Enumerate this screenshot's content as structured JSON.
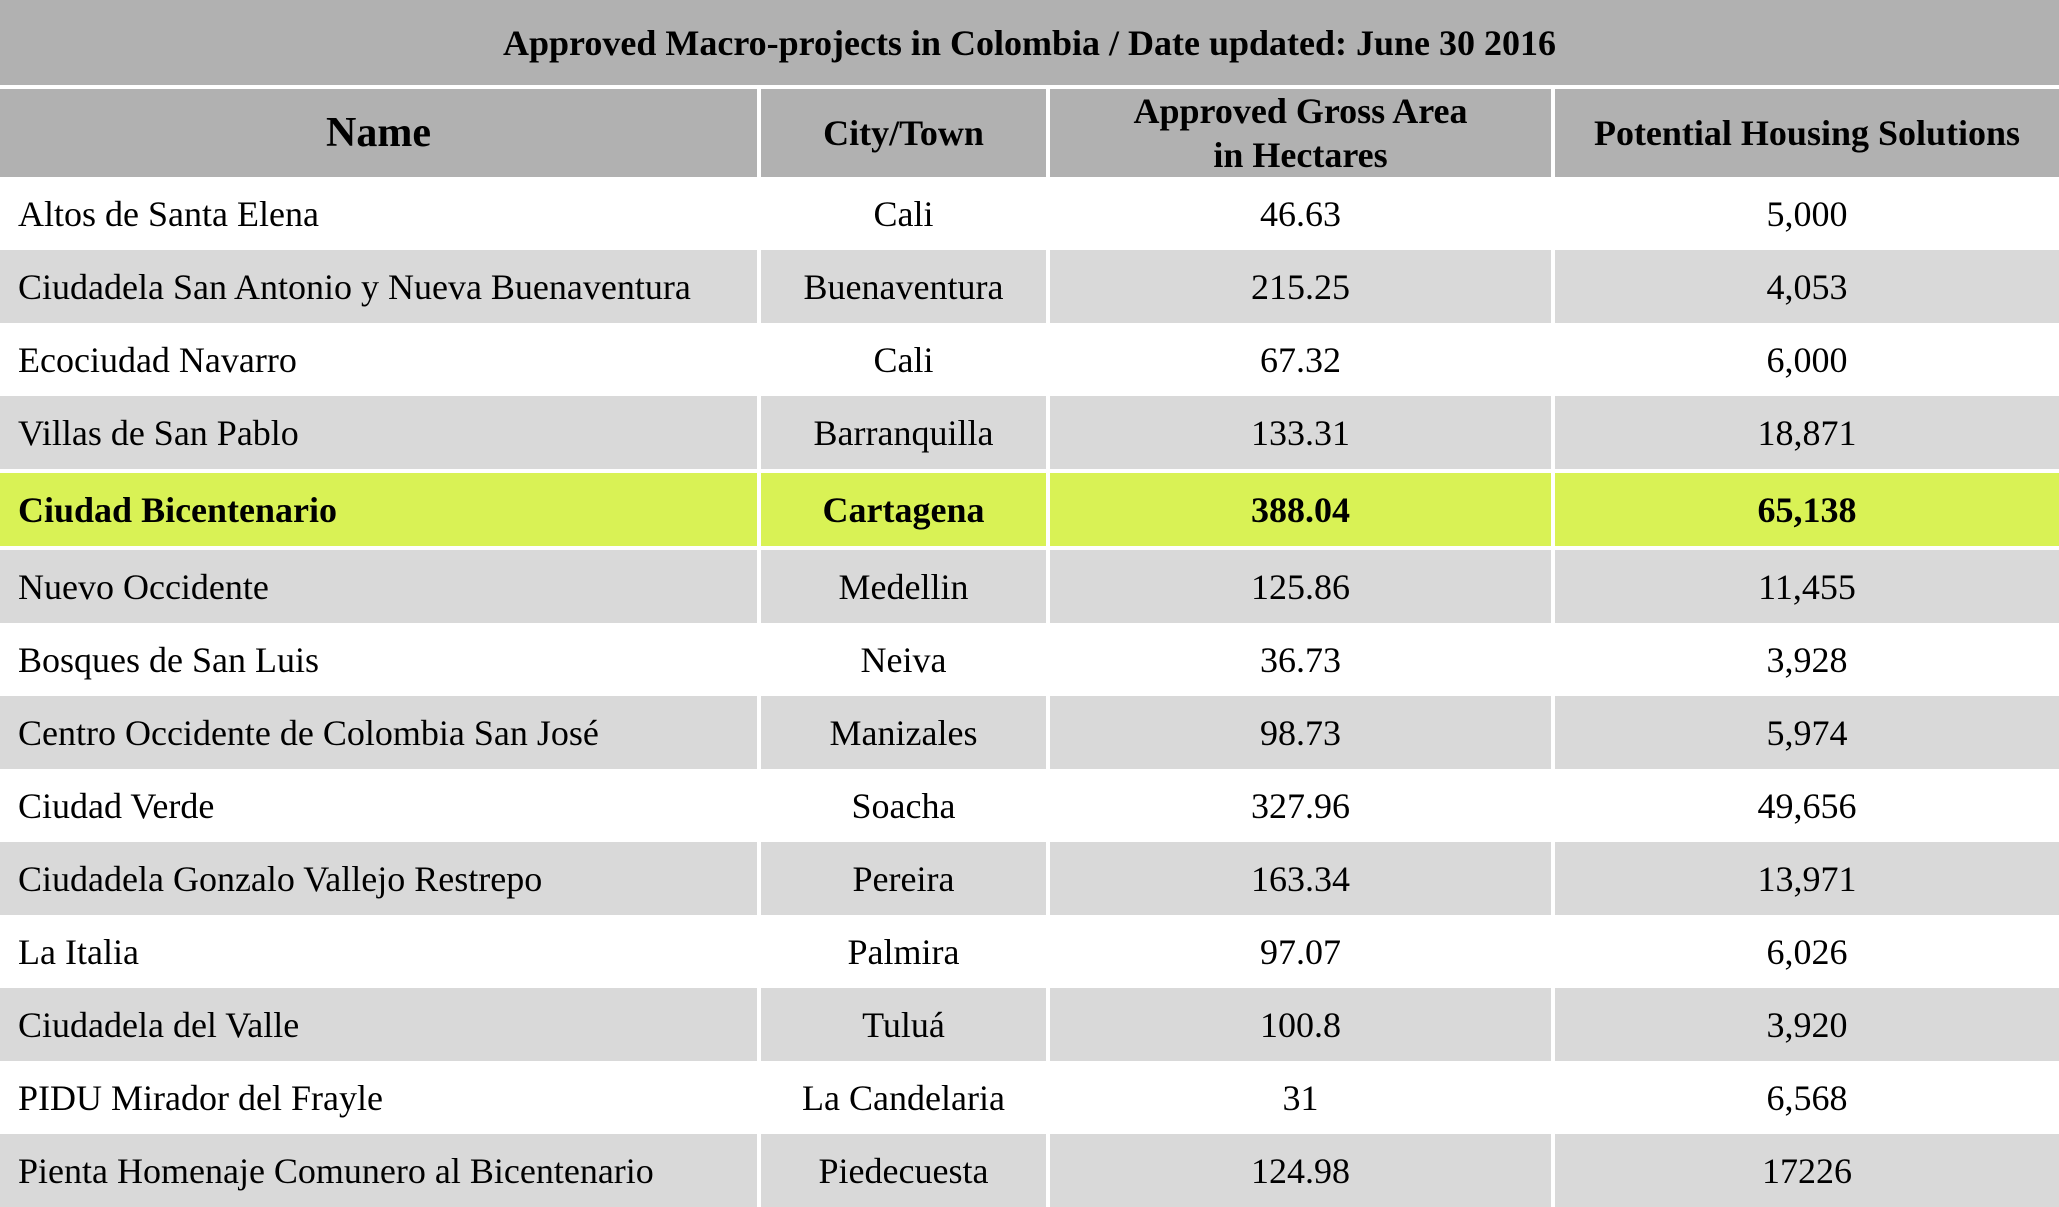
{
  "title": "Approved Macro-projects in Colombia / Date updated: June 30 2016",
  "headers": {
    "name": "Name",
    "city": "City/Town",
    "area_line1": "Approved Gross Area",
    "area_line2": "in Hectares",
    "housing": "Potential Housing Solutions"
  },
  "rows": [
    {
      "name": "Altos de Santa Elena",
      "city": "Cali",
      "area": "46.63",
      "housing": "5,000"
    },
    {
      "name": "Ciudadela San Antonio y Nueva Buenaventura",
      "city": "Buenaventura",
      "area": "215.25",
      "housing": "4,053"
    },
    {
      "name": "Ecociudad Navarro",
      "city": "Cali",
      "area": "67.32",
      "housing": "6,000"
    },
    {
      "name": "Villas de San Pablo",
      "city": "Barranquilla",
      "area": "133.31",
      "housing": "18,871"
    },
    {
      "name": "Ciudad Bicentenario",
      "city": "Cartagena",
      "area": "388.04",
      "housing": "65,138"
    },
    {
      "name": "Nuevo Occidente",
      "city": "Medellin",
      "area": "125.86",
      "housing": "11,455"
    },
    {
      "name": "Bosques de San Luis",
      "city": "Neiva",
      "area": "36.73",
      "housing": "3,928"
    },
    {
      "name": "Centro Occidente de Colombia San José",
      "city": "Manizales",
      "area": "98.73",
      "housing": "5,974"
    },
    {
      "name": "Ciudad Verde",
      "city": "Soacha",
      "area": "327.96",
      "housing": "49,656"
    },
    {
      "name": "Ciudadela Gonzalo Vallejo Restrepo",
      "city": "Pereira",
      "area": "163.34",
      "housing": "13,971"
    },
    {
      "name": "La Italia",
      "city": "Palmira",
      "area": "97.07",
      "housing": "6,026"
    },
    {
      "name": "Ciudadela del Valle",
      "city": "Tuluá",
      "area": "100.8",
      "housing": "3,920"
    },
    {
      "name": "PIDU Mirador del Frayle",
      "city": "La Candelaria",
      "area": "31",
      "housing": "6,568"
    },
    {
      "name": "Pienta Homenaje Comunero al Bicentenario",
      "city": "Piedecuesta",
      "area": "124.98",
      "housing": "17226"
    }
  ],
  "colors": {
    "header_bg": "#b1b1b1",
    "stripe_bg": "#d9d9d9",
    "highlight_bg": "#d9f255"
  }
}
